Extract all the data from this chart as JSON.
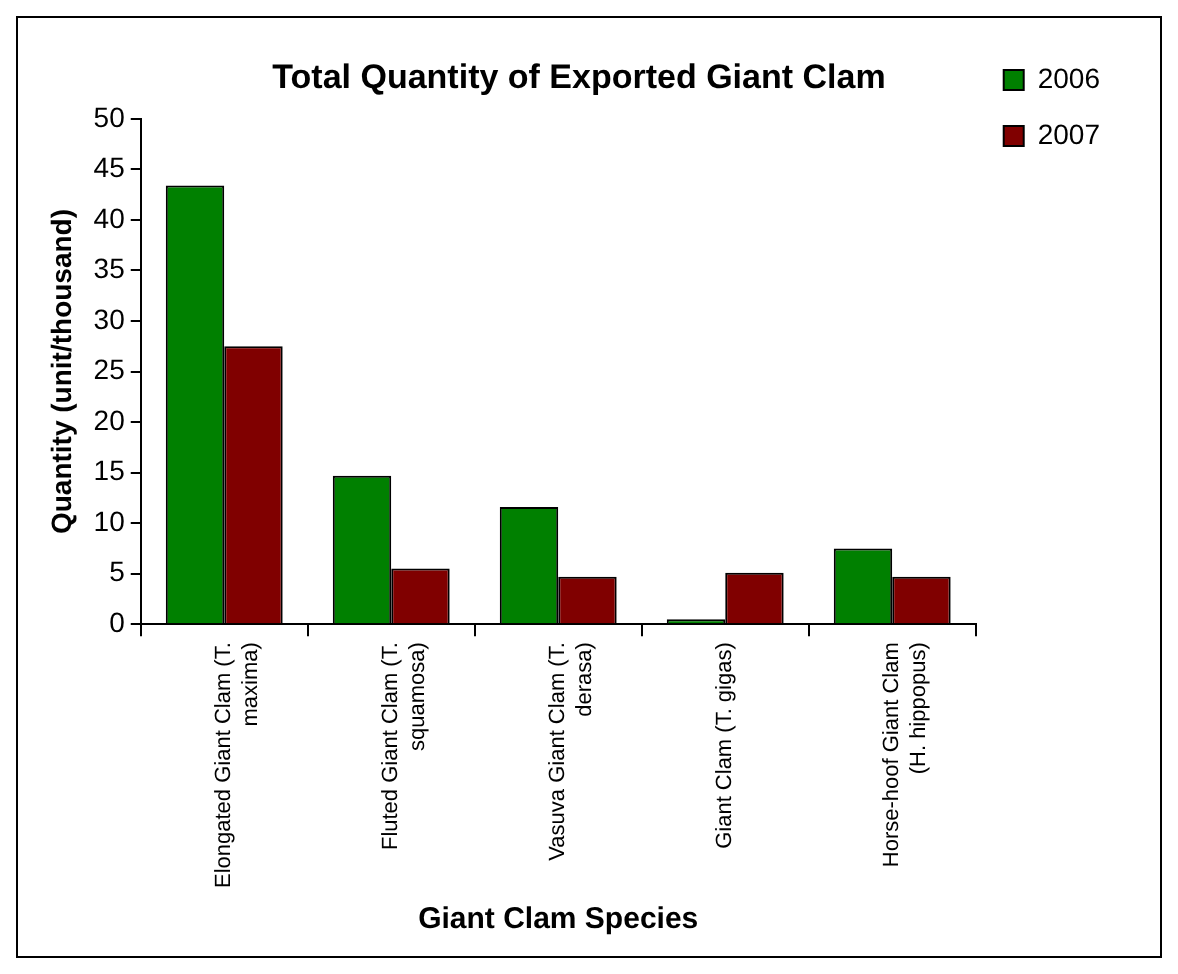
{
  "chart_data": {
    "type": "bar",
    "title": "Total Quantity of Exported Giant Clam",
    "xlabel": "Giant Clam Species",
    "ylabel": "Quantity (unit/thousand)",
    "categories": [
      "Elongated Giant Clam (T. maxima)",
      "Fluted Giant Clam (T. squamosa)",
      "Vasuva Giant Clam (T. derasa)",
      "Giant Clam (T. gigas)",
      "Horse-hoof Giant Clam (H. hippopus)"
    ],
    "series": [
      {
        "name": "2006",
        "color": "#008000",
        "values": [
          43.4,
          14.7,
          11.6,
          0.5,
          7.5
        ]
      },
      {
        "name": "2007",
        "color": "#800000",
        "values": [
          27.5,
          5.5,
          4.7,
          5.1,
          4.7
        ]
      }
    ],
    "ylim": [
      0,
      50
    ],
    "yticks": [
      0,
      5,
      10,
      15,
      20,
      25,
      30,
      35,
      40,
      45,
      50
    ],
    "grid": false,
    "legend": "top right"
  }
}
